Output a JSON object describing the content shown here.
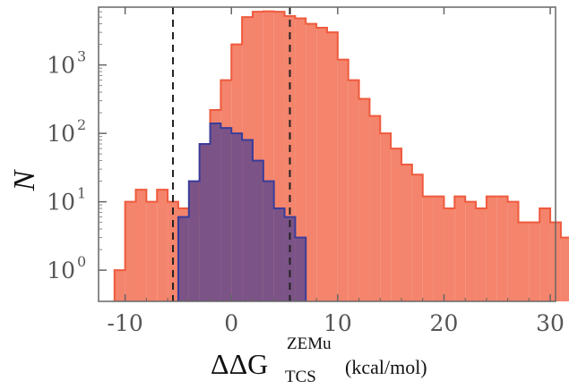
{
  "chart_data": {
    "type": "histogram",
    "ylabel": "N",
    "xlabel": {
      "main": "ΔΔG",
      "superscript": "ZEMu",
      "subscript": "TCS",
      "unit": "(kcal/mol)"
    },
    "xlim": [
      -12.5,
      30.5
    ],
    "yscale": "log",
    "ylim": [
      0.35,
      7000
    ],
    "xticks": [
      -10,
      0,
      10,
      20,
      30
    ],
    "xtick_labels": [
      "-10",
      "0",
      "10",
      "20",
      "30"
    ],
    "yticks": [
      1,
      10,
      100,
      1000
    ],
    "ytick_labels": [
      {
        "base": "10",
        "exp": "0"
      },
      {
        "base": "10",
        "exp": "1"
      },
      {
        "base": "10",
        "exp": "2"
      },
      {
        "base": "10",
        "exp": "3"
      }
    ],
    "vlines": [
      -5.5,
      5.5
    ],
    "bin_width": 1,
    "series": [
      {
        "color": "#f4846c",
        "edge_color": "#ef5a3d",
        "bins_start": -12,
        "counts": [
          0,
          1,
          10,
          15,
          10,
          15,
          10,
          8,
          6,
          70,
          220,
          600,
          2000,
          5000,
          6000,
          6100,
          6000,
          5200,
          4800,
          4000,
          3500,
          3000,
          1200,
          600,
          320,
          180,
          100,
          60,
          35,
          25,
          12,
          12,
          8,
          12,
          10,
          8,
          12,
          12,
          10,
          5,
          5,
          8,
          5,
          3,
          2,
          2,
          1,
          1,
          1,
          1,
          1,
          1,
          0,
          0,
          0,
          0,
          0,
          0,
          0,
          0
        ]
      },
      {
        "color": "#7b5387",
        "edge_color": "#3a3d9a",
        "bins_start": -12,
        "counts": [
          0,
          0,
          0,
          0,
          0,
          0,
          0,
          6,
          20,
          70,
          140,
          120,
          100,
          80,
          40,
          20,
          8,
          6,
          3,
          0,
          0,
          0,
          0,
          0,
          0,
          0,
          0,
          0,
          0,
          0,
          0,
          0,
          0,
          0,
          0,
          0,
          0,
          0,
          0,
          0,
          0,
          0,
          0,
          0,
          0,
          0,
          0,
          0,
          0,
          0,
          0,
          0,
          0,
          0,
          0,
          0,
          0,
          0,
          0,
          0
        ]
      }
    ]
  }
}
